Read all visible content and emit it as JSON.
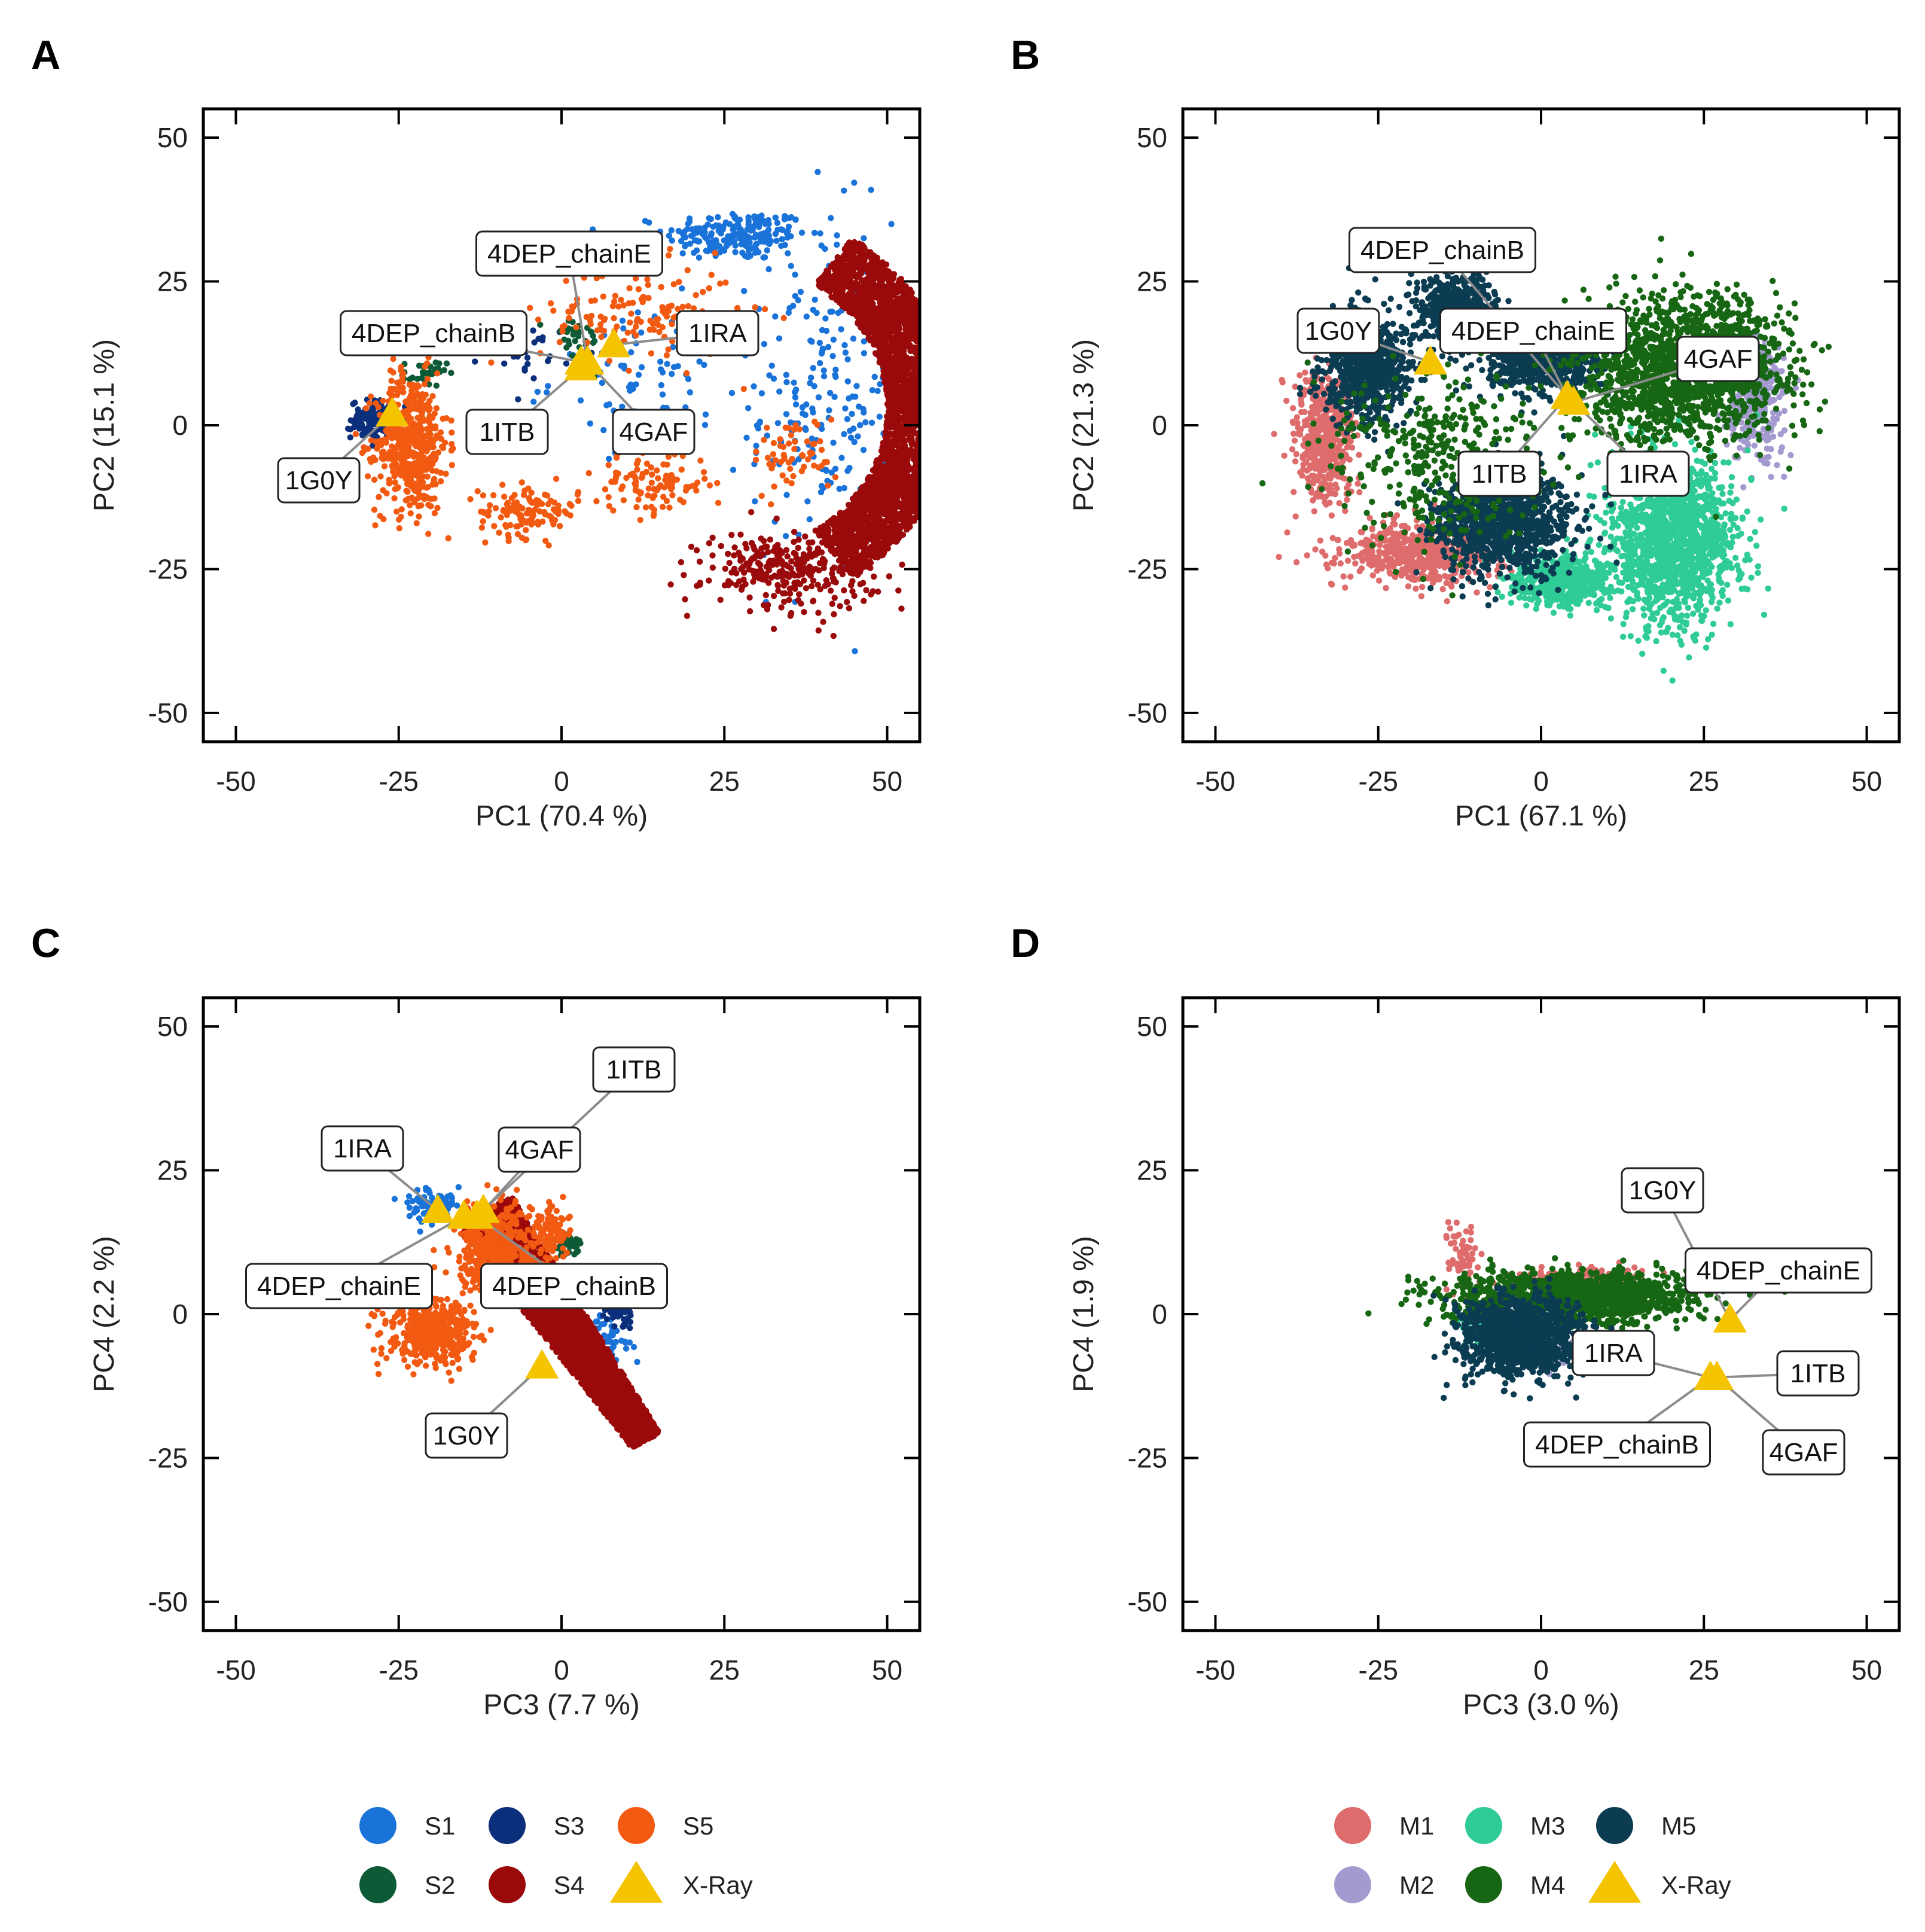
{
  "figure": {
    "legends": [
      {
        "items": [
          {
            "label": "S1",
            "color": "#1a73d9",
            "shape": "circle"
          },
          {
            "label": "S3",
            "color": "#0b2f7a",
            "shape": "circle"
          },
          {
            "label": "S5",
            "color": "#f25a12",
            "shape": "circle"
          },
          {
            "label": "S2",
            "color": "#0d5a36",
            "shape": "circle"
          },
          {
            "label": "S4",
            "color": "#9b0a0a",
            "shape": "circle"
          },
          {
            "label": "X-Ray",
            "color": "#f5c400",
            "shape": "triangle"
          }
        ]
      },
      {
        "items": [
          {
            "label": "M1",
            "color": "#df6c6c",
            "shape": "circle"
          },
          {
            "label": "M3",
            "color": "#2fcc95",
            "shape": "circle"
          },
          {
            "label": "M5",
            "color": "#0b3c52",
            "shape": "circle"
          },
          {
            "label": "M2",
            "color": "#a49ad0",
            "shape": "circle"
          },
          {
            "label": "M4",
            "color": "#176614",
            "shape": "circle"
          },
          {
            "label": "X-Ray",
            "color": "#f5c400",
            "shape": "triangle"
          }
        ]
      }
    ]
  },
  "chart_data": [
    {
      "panel": "A",
      "type": "scatter",
      "xlabel": "PC1 (70.4 %)",
      "ylabel": "PC2 (15.1 %)",
      "xlim": [
        -55,
        55
      ],
      "ylim": [
        -55,
        55
      ],
      "xticks": [
        -50,
        -25,
        0,
        25,
        50
      ],
      "yticks": [
        -50,
        -25,
        0,
        25,
        50
      ],
      "tick_labels": [
        "-50",
        "-25",
        "0",
        "25",
        "50"
      ],
      "series": [
        {
          "name": "S1",
          "color": "#1a73d9",
          "regions": [
            {
              "cx": 27,
              "cy": 33,
              "rx": 10,
              "ry": 4,
              "n": 200
            },
            {
              "cx": 40,
              "cy": 5,
              "rx": 10,
              "ry": 28,
              "n": 220
            },
            {
              "cx": 15,
              "cy": 8,
              "rx": 15,
              "ry": 10,
              "n": 80
            }
          ]
        },
        {
          "name": "S3",
          "color": "#0b2f7a",
          "regions": [
            {
              "cx": -29,
              "cy": 1,
              "rx": 3,
              "ry": 3,
              "n": 120
            },
            {
              "cx": -5,
              "cy": 13,
              "rx": 6,
              "ry": 4,
              "n": 30
            }
          ]
        },
        {
          "name": "S2",
          "color": "#0d5a36",
          "regions": [
            {
              "cx": -21,
              "cy": 9,
              "rx": 3,
              "ry": 2,
              "n": 30
            },
            {
              "cx": 2,
              "cy": 15,
              "rx": 4,
              "ry": 4,
              "n": 30
            }
          ]
        },
        {
          "name": "S5",
          "color": "#f25a12",
          "regions": [
            {
              "cx": -23,
              "cy": -3,
              "rx": 5,
              "ry": 11,
              "n": 500
            },
            {
              "cx": -5,
              "cy": -15,
              "rx": 7,
              "ry": 4,
              "n": 120
            },
            {
              "cx": 14,
              "cy": -10,
              "rx": 8,
              "ry": 5,
              "n": 110
            },
            {
              "cx": 12,
              "cy": 19,
              "rx": 14,
              "ry": 8,
              "n": 140
            },
            {
              "cx": 36,
              "cy": -5,
              "rx": 6,
              "ry": 6,
              "n": 60
            }
          ]
        },
        {
          "name": "S4",
          "color": "#9b0a0a",
          "regions": [
            {
              "arc": true,
              "cx": 24,
              "cy": 3,
              "r_outer": 36,
              "r_inner": 26,
              "a_start": -55,
              "a_end": 55,
              "n": 3200
            },
            {
              "cx": 35,
              "cy": -25,
              "rx": 12,
              "ry": 6,
              "n": 300
            }
          ]
        }
      ],
      "xray": [
        {
          "label": "1G0Y",
          "x": -26,
          "y": 2
        },
        {
          "label": "4DEP_chainB",
          "x": 3,
          "y": 11
        },
        {
          "label": "4DEP_chainE",
          "x": 4,
          "y": 11
        },
        {
          "label": "1IRA",
          "x": 8,
          "y": 14
        },
        {
          "label": "1ITB",
          "x": 3,
          "y": 10
        },
        {
          "label": "4GAF",
          "x": 4,
          "y": 11
        }
      ]
    },
    {
      "panel": "B",
      "type": "scatter",
      "xlabel": "PC1 (67.1 %)",
      "ylabel": "PC2 (21.3 %)",
      "xlim": [
        -55,
        55
      ],
      "ylim": [
        -55,
        55
      ],
      "xticks": [
        -50,
        -25,
        0,
        25,
        50
      ],
      "yticks": [
        -50,
        -25,
        0,
        25,
        50
      ],
      "tick_labels": [
        "-50",
        "-25",
        "0",
        "25",
        "50"
      ],
      "series": [
        {
          "name": "M1",
          "color": "#df6c6c",
          "regions": [
            {
              "cx": -33,
              "cy": -2,
              "rx": 4,
              "ry": 10,
              "n": 500
            },
            {
              "cx": -18,
              "cy": -22,
              "rx": 12,
              "ry": 5,
              "n": 500
            }
          ]
        },
        {
          "name": "M2",
          "color": "#a49ad0",
          "regions": [
            {
              "cx": 33,
              "cy": 5,
              "rx": 4,
              "ry": 10,
              "n": 300
            }
          ]
        },
        {
          "name": "M3",
          "color": "#2fcc95",
          "regions": [
            {
              "cx": 20,
              "cy": -20,
              "rx": 9,
              "ry": 13,
              "n": 1400
            },
            {
              "cx": 3,
              "cy": -27,
              "rx": 7,
              "ry": 4,
              "n": 450
            }
          ]
        },
        {
          "name": "M5",
          "color": "#0b3c52",
          "regions": [
            {
              "cx": -27,
              "cy": 10,
              "rx": 6,
              "ry": 8,
              "n": 700
            },
            {
              "cx": -6,
              "cy": -17,
              "rx": 9,
              "ry": 8,
              "n": 1100
            },
            {
              "cx": -13,
              "cy": 20,
              "rx": 6,
              "ry": 6,
              "n": 500
            },
            {
              "cx": 0,
              "cy": 11,
              "rx": 8,
              "ry": 5,
              "n": 500
            }
          ]
        },
        {
          "name": "M4",
          "color": "#176614",
          "regions": [
            {
              "cx": 22,
              "cy": 10,
              "rx": 14,
              "ry": 11,
              "n": 1700
            },
            {
              "cx": -15,
              "cy": -5,
              "rx": 15,
              "ry": 14,
              "n": 400
            }
          ]
        }
      ],
      "xray": [
        {
          "label": "1G0Y",
          "x": -17,
          "y": 11
        },
        {
          "label": "4DEP_chainB",
          "x": 4,
          "y": 5
        },
        {
          "label": "4DEP_chainE",
          "x": 4,
          "y": 5
        },
        {
          "label": "4GAF",
          "x": 5,
          "y": 4
        },
        {
          "label": "1ITB",
          "x": 4,
          "y": 5
        },
        {
          "label": "1IRA",
          "x": 5,
          "y": 4
        }
      ]
    },
    {
      "panel": "C",
      "type": "scatter",
      "xlabel": "PC3 (7.7 %)",
      "ylabel": "PC4 (2.2 %)",
      "xlim": [
        -55,
        55
      ],
      "ylim": [
        -55,
        55
      ],
      "xticks": [
        -50,
        -25,
        0,
        25,
        50
      ],
      "yticks": [
        -50,
        -25,
        0,
        25,
        50
      ],
      "tick_labels": [
        "-50",
        "-25",
        "0",
        "25",
        "50"
      ],
      "series": [
        {
          "name": "S1",
          "color": "#1a73d9",
          "regions": [
            {
              "cx": -20,
              "cy": 19,
              "rx": 4,
              "ry": 3,
              "n": 80
            },
            {
              "cx": 5,
              "cy": -5,
              "rx": 5,
              "ry": 4,
              "n": 100
            }
          ]
        },
        {
          "name": "S3",
          "color": "#0b2f7a",
          "regions": [
            {
              "cx": 9,
              "cy": 0,
              "rx": 2,
              "ry": 2,
              "n": 40
            }
          ]
        },
        {
          "name": "S2",
          "color": "#0d5a36",
          "regions": [
            {
              "cx": 1,
              "cy": 12,
              "rx": 2,
              "ry": 2,
              "n": 40
            }
          ]
        },
        {
          "name": "S4",
          "color": "#9b0a0a",
          "regions": [
            {
              "line": true,
              "x1": -12,
              "y1": 18,
              "x2": 13,
              "y2": -22,
              "w": 5,
              "n": 2800
            }
          ]
        },
        {
          "name": "S5",
          "color": "#f25a12",
          "regions": [
            {
              "cx": -20,
              "cy": -3,
              "rx": 6,
              "ry": 5,
              "n": 450
            },
            {
              "cx": -10,
              "cy": 11,
              "rx": 5,
              "ry": 7,
              "n": 500
            },
            {
              "cx": -2,
              "cy": 14,
              "rx": 3,
              "ry": 4,
              "n": 100
            }
          ]
        }
      ],
      "xray": [
        {
          "label": "1ITB",
          "x": -13,
          "y": 17
        },
        {
          "label": "1IRA",
          "x": -19,
          "y": 18
        },
        {
          "label": "4GAF",
          "x": -12,
          "y": 18
        },
        {
          "label": "4DEP_chainE",
          "x": -15,
          "y": 17
        },
        {
          "label": "4DEP_chainB",
          "x": -13,
          "y": 17
        },
        {
          "label": "1G0Y",
          "x": -3,
          "y": -9
        }
      ]
    },
    {
      "panel": "D",
      "type": "scatter",
      "xlabel": "PC3 (3.0 %)",
      "ylabel": "PC4 (1.9 %)",
      "xlim": [
        -55,
        55
      ],
      "ylim": [
        -55,
        55
      ],
      "xticks": [
        -50,
        -25,
        0,
        25,
        50
      ],
      "yticks": [
        -50,
        -25,
        0,
        25,
        50
      ],
      "tick_labels": [
        "-50",
        "-25",
        "0",
        "25",
        "50"
      ],
      "series": [
        {
          "name": "M1",
          "color": "#df6c6c",
          "regions": [
            {
              "cx": -12,
              "cy": 10,
              "rx": 2,
              "ry": 5,
              "n": 60
            },
            {
              "cx": 6,
              "cy": 6,
              "rx": 10,
              "ry": 2,
              "n": 150
            }
          ]
        },
        {
          "name": "M3",
          "color": "#2fcc95",
          "regions": [
            {
              "cx": -10,
              "cy": -2,
              "rx": 3,
              "ry": 3,
              "n": 40
            }
          ]
        },
        {
          "name": "M2",
          "color": "#a49ad0",
          "regions": [
            {
              "cx": 5,
              "cy": -7,
              "rx": 5,
              "ry": 2,
              "n": 40
            }
          ]
        },
        {
          "name": "M4",
          "color": "#176614",
          "regions": [
            {
              "cx": 5,
              "cy": 3,
              "rx": 17,
              "ry": 4,
              "n": 1500
            }
          ]
        },
        {
          "name": "M5",
          "color": "#0b3c52",
          "regions": [
            {
              "cx": -3,
              "cy": -4,
              "rx": 8,
              "ry": 6,
              "n": 1300
            }
          ]
        }
      ],
      "xray": [
        {
          "label": "1G0Y",
          "x": 29,
          "y": -1
        },
        {
          "label": "4DEP_chainE",
          "x": 29,
          "y": -1
        },
        {
          "label": "1IRA",
          "x": 26,
          "y": -11
        },
        {
          "label": "1ITB",
          "x": 27,
          "y": -11
        },
        {
          "label": "4DEP_chainB",
          "x": 26,
          "y": -11
        },
        {
          "label": "4GAF",
          "x": 27,
          "y": -11
        }
      ]
    }
  ]
}
